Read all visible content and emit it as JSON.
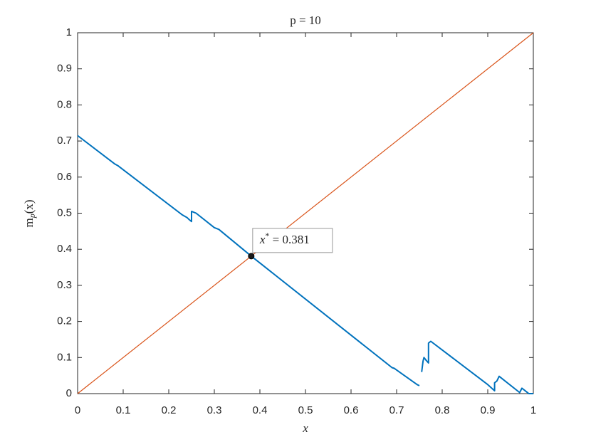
{
  "chart_data": {
    "type": "line",
    "title": "p = 10",
    "xlabel": "x",
    "ylabel": {
      "main": "m",
      "sub": "p",
      "rest": "(x)"
    },
    "xlim": [
      0,
      1
    ],
    "ylim": [
      0,
      1
    ],
    "xticks": [
      0,
      0.1,
      0.2,
      0.3,
      0.4,
      0.5,
      0.6,
      0.7,
      0.8,
      0.9,
      1
    ],
    "yticks": [
      0,
      0.1,
      0.2,
      0.3,
      0.4,
      0.5,
      0.6,
      0.7,
      0.8,
      0.9,
      1
    ],
    "series": [
      {
        "color": "#0072BD",
        "x": [
          0,
          0.082,
          0.088,
          0.23,
          0.24,
          0.245,
          0.25,
          0.25,
          0.26,
          0.3,
          0.31,
          0.381,
          0.69,
          0.695,
          0.745,
          0.75,
          0.752,
          0.755,
          0.758,
          0.76,
          0.765,
          0.77,
          0.77,
          0.775,
          0.9,
          0.915,
          0.915,
          0.92,
          0.925,
          0.97,
          0.975,
          0.985,
          0.99,
          1
        ],
        "values": [
          0.715,
          0.636,
          0.632,
          0.495,
          0.488,
          0.482,
          0.477,
          0.505,
          0.5,
          0.46,
          0.455,
          0.381,
          0.072,
          0.07,
          0.025,
          0.022,
          null,
          0.06,
          0.09,
          0.1,
          0.092,
          0.085,
          0.14,
          0.145,
          0.025,
          0.008,
          0.03,
          0.035,
          0.048,
          0.003,
          0.015,
          0.005,
          0,
          0
        ]
      },
      {
        "color": "#D95319",
        "x": [
          0,
          1
        ],
        "values": [
          0,
          1
        ]
      }
    ],
    "annotation": {
      "x": 0.381,
      "y": 0.381,
      "main": "x",
      "sup": "*",
      "rest": " = 0.381"
    }
  }
}
